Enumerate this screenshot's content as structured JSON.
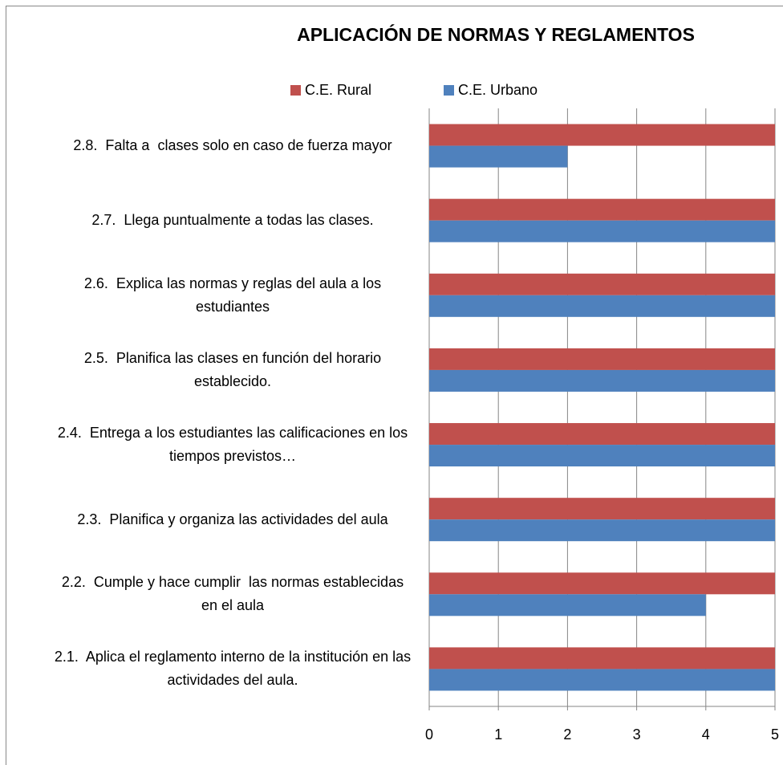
{
  "chart_data": {
    "type": "hbar",
    "title": "APLICACIÓN DE NORMAS Y REGLAMENTOS",
    "categories": [
      "2.1.  Aplica el reglamento interno de la institución en las actividades del aula.",
      "2.2.  Cumple y hace cumplir  las normas establecidas en el aula",
      "2.3.  Planifica y organiza las actividades del aula",
      "2.4.  Entrega a los estudiantes las calificaciones en los tiempos previstos…",
      "2.5.  Planifica las clases en función del horario establecido.",
      "2.6.  Explica las normas y reglas del aula a los estudiantes",
      "2.7.  Llega puntualmente a todas las clases.",
      "2.8.  Falta a  clases solo en caso de fuerza mayor"
    ],
    "series": [
      {
        "name": "C.E. Rural",
        "color": "#c0504d",
        "values": [
          5,
          5,
          5,
          5,
          5,
          5,
          5,
          5
        ]
      },
      {
        "name": "C.E. Urbano",
        "color": "#4f81bd",
        "values": [
          5,
          4,
          5,
          5,
          5,
          5,
          5,
          2
        ]
      }
    ],
    "xlim": [
      0,
      5
    ],
    "xticks": [
      0,
      1,
      2,
      3,
      4,
      5
    ],
    "grid": true,
    "legend": "top"
  }
}
